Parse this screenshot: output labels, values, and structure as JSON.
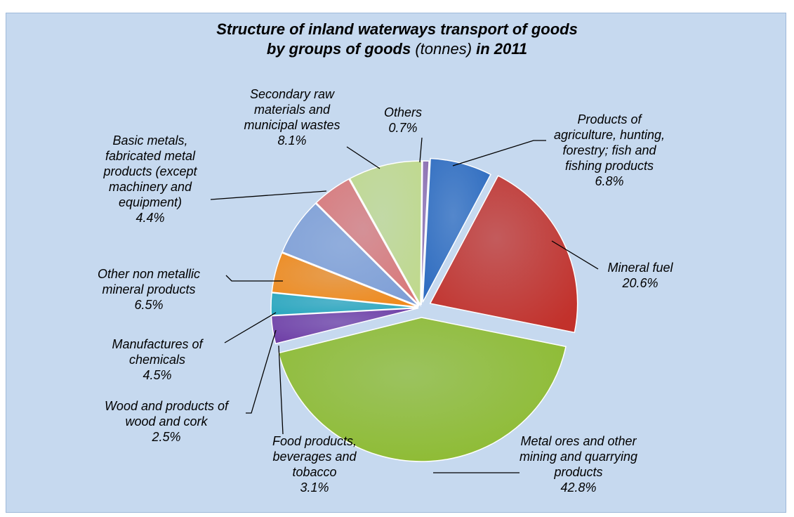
{
  "chart_data": {
    "type": "pie",
    "title_line1": "Structure  of  inland waterways transport of goods",
    "title_line2_a": "by groups of goods ",
    "title_line2_unit": "(tonnes)",
    "title_line2_b": " in 2011",
    "slices": [
      {
        "label_lines": [
          "Products of",
          "agriculture, hunting,",
          "forestry; fish and",
          "fishing products"
        ],
        "pct": "6.8%",
        "value": 6.8,
        "color": "#2e6cc0"
      },
      {
        "label_lines": [
          "Mineral fuel"
        ],
        "pct": "20.6%",
        "value": 20.6,
        "color": "#c2312b"
      },
      {
        "label_lines": [
          "Metal ores and other",
          "mining and quarrying",
          "products"
        ],
        "pct": "42.8%",
        "value": 42.8,
        "color": "#8dbb2f"
      },
      {
        "label_lines": [
          "Food products,",
          "beverages and",
          "tobacco"
        ],
        "pct": "3.1%",
        "value": 3.1,
        "color": "#6f3ea6"
      },
      {
        "label_lines": [
          "Wood and products of",
          "wood and cork"
        ],
        "pct": "2.5%",
        "value": 2.5,
        "color": "#2aa7be"
      },
      {
        "label_lines": [
          "Manufactures of",
          "chemicals"
        ],
        "pct": "4.5%",
        "value": 4.5,
        "color": "#f08a1c"
      },
      {
        "label_lines": [
          "Other non metallic",
          "mineral products"
        ],
        "pct": "6.5%",
        "value": 6.5,
        "color": "#7f9fd6"
      },
      {
        "label_lines": [
          "Basic metals,",
          "fabricated metal",
          "products (except",
          "machinery and",
          "equipment)"
        ],
        "pct": "4.4%",
        "value": 4.4,
        "color": "#d9797a"
      },
      {
        "label_lines": [
          "Secondary raw",
          "materials and",
          "municipal wastes"
        ],
        "pct": "8.1%",
        "value": 8.1,
        "color": "#c0d98e"
      },
      {
        "label_lines": [
          "Others"
        ],
        "pct": "0.7%",
        "value": 0.7,
        "color": "#8b6bb0"
      }
    ]
  }
}
